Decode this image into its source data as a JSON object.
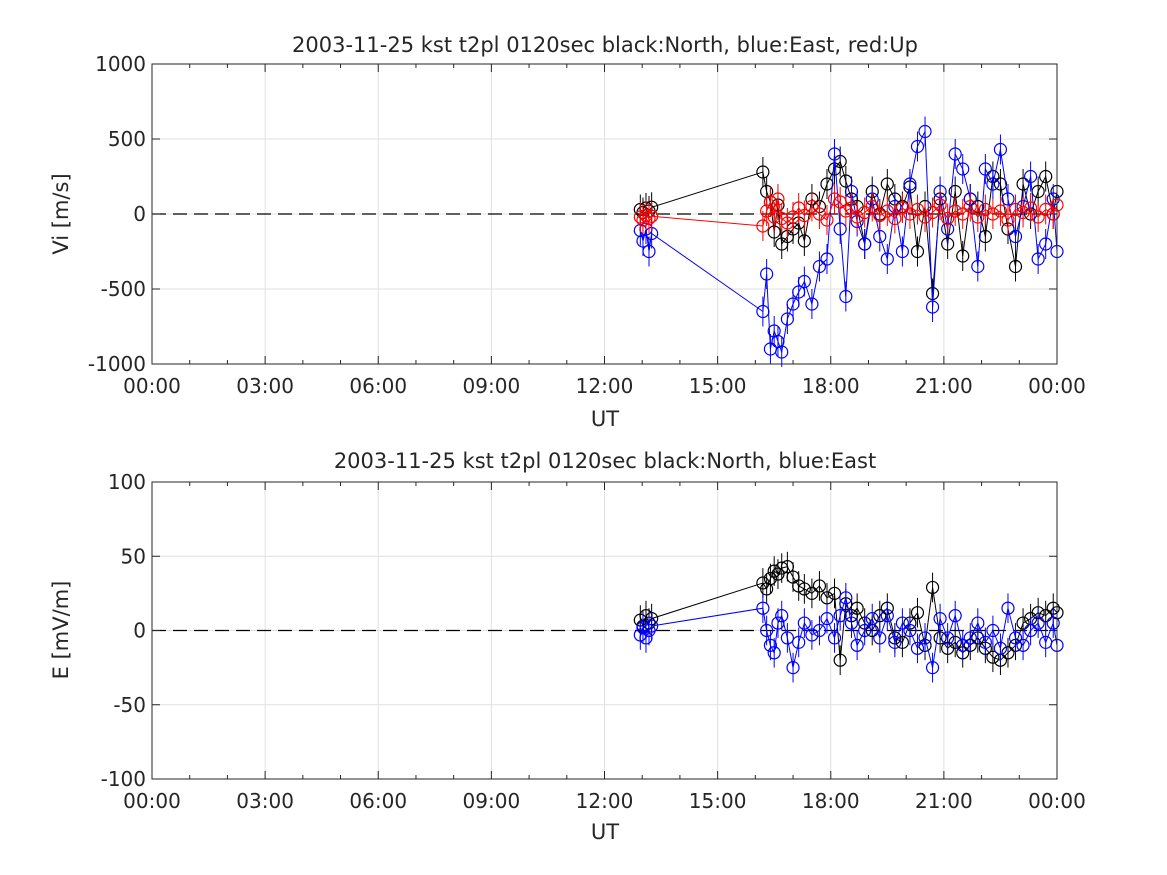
{
  "chart_data": [
    {
      "type": "scatter",
      "title": "2003-11-25 kst t2pl 0120sec black:North, blue:East, red:Up",
      "xlabel": "UT",
      "ylabel": "Vi [m/s]",
      "xlim": [
        0,
        24
      ],
      "ylim": [
        -1000,
        1000
      ],
      "x_ticks": [
        "00:00",
        "03:00",
        "06:00",
        "09:00",
        "12:00",
        "15:00",
        "18:00",
        "21:00",
        "00:00"
      ],
      "y_ticks": [
        "-1000",
        "-500",
        "0",
        "500",
        "1000"
      ],
      "y_tick_values": [
        -1000,
        -500,
        0,
        500,
        1000
      ],
      "grid": true,
      "zero_line": "dashed",
      "x_units": "hours UT",
      "series": [
        {
          "name": "North",
          "color": "#000000",
          "x": [
            12.95,
            13.02,
            13.1,
            13.18,
            13.25,
            16.2,
            16.3,
            16.4,
            16.5,
            16.6,
            16.7,
            16.85,
            17.0,
            17.15,
            17.3,
            17.5,
            17.7,
            17.9,
            18.1,
            18.25,
            18.4,
            18.55,
            18.7,
            18.9,
            19.1,
            19.3,
            19.5,
            19.7,
            19.9,
            20.1,
            20.3,
            20.5,
            20.7,
            20.9,
            21.1,
            21.3,
            21.5,
            21.7,
            21.9,
            22.1,
            22.3,
            22.5,
            22.7,
            22.9,
            23.1,
            23.3,
            23.5,
            23.7,
            23.9,
            24.0
          ],
          "y": [
            30,
            10,
            40,
            20,
            45,
            280,
            150,
            80,
            -120,
            60,
            -200,
            -150,
            -100,
            -60,
            -180,
            100,
            50,
            200,
            300,
            350,
            220,
            100,
            50,
            -200,
            150,
            0,
            200,
            100,
            50,
            180,
            -250,
            50,
            -530,
            100,
            -200,
            150,
            -280,
            100,
            50,
            -150,
            250,
            200,
            -100,
            -350,
            200,
            0,
            150,
            250,
            0,
            150
          ]
        },
        {
          "name": "East",
          "color": "#0000ff",
          "x": [
            12.95,
            13.02,
            13.1,
            13.18,
            13.25,
            16.2,
            16.3,
            16.4,
            16.5,
            16.6,
            16.7,
            16.85,
            17.0,
            17.15,
            17.3,
            17.5,
            17.7,
            17.9,
            18.1,
            18.25,
            18.4,
            18.55,
            18.7,
            18.9,
            19.1,
            19.3,
            19.5,
            19.7,
            19.9,
            20.1,
            20.3,
            20.5,
            20.7,
            20.9,
            21.1,
            21.3,
            21.5,
            21.7,
            21.9,
            22.1,
            22.3,
            22.5,
            22.7,
            22.9,
            23.1,
            23.3,
            23.5,
            23.7,
            23.9,
            24.0
          ],
          "y": [
            -110,
            -180,
            -100,
            -250,
            -130,
            -650,
            -400,
            -900,
            -780,
            -850,
            -920,
            -700,
            -600,
            -520,
            -450,
            -600,
            -350,
            -300,
            400,
            -100,
            -550,
            150,
            -50,
            -200,
            100,
            -150,
            -300,
            50,
            -250,
            200,
            450,
            550,
            -620,
            150,
            -100,
            400,
            300,
            100,
            -350,
            300,
            200,
            430,
            100,
            -150,
            50,
            250,
            -300,
            -200,
            100,
            -250
          ]
        },
        {
          "name": "Up",
          "color": "#ff0000",
          "x": [
            12.95,
            13.02,
            13.1,
            13.18,
            13.25,
            16.2,
            16.3,
            16.4,
            16.5,
            16.6,
            16.7,
            16.85,
            17.0,
            17.15,
            17.3,
            17.5,
            17.7,
            17.9,
            18.1,
            18.25,
            18.4,
            18.55,
            18.7,
            18.9,
            19.1,
            19.3,
            19.5,
            19.7,
            19.9,
            20.1,
            20.3,
            20.5,
            20.7,
            20.9,
            21.1,
            21.3,
            21.5,
            21.7,
            21.9,
            22.1,
            22.3,
            22.5,
            22.7,
            22.9,
            23.1,
            23.3,
            23.5,
            23.7,
            23.9,
            24.0
          ],
          "y": [
            -20,
            -40,
            -10,
            -30,
            -15,
            -80,
            20,
            80,
            -20,
            100,
            -30,
            -60,
            -20,
            40,
            -10,
            50,
            0,
            -40,
            100,
            80,
            20,
            40,
            -20,
            10,
            50,
            -10,
            20,
            -30,
            40,
            0,
            30,
            -20,
            10,
            60,
            -30,
            20,
            0,
            50,
            -20,
            30,
            0,
            20,
            -40,
            30,
            10,
            40,
            -20,
            30,
            0,
            60
          ]
        }
      ]
    },
    {
      "type": "scatter",
      "title": "2003-11-25 kst t2pl 0120sec black:North, blue:East",
      "xlabel": "UT",
      "ylabel": "E [mV/m]",
      "xlim": [
        0,
        24
      ],
      "ylim": [
        -100,
        100
      ],
      "x_ticks": [
        "00:00",
        "03:00",
        "06:00",
        "09:00",
        "12:00",
        "15:00",
        "18:00",
        "21:00",
        "00:00"
      ],
      "y_ticks": [
        "-100",
        "-50",
        "0",
        "50",
        "100"
      ],
      "y_tick_values": [
        -100,
        -50,
        0,
        50,
        100
      ],
      "grid": true,
      "zero_line": "dashed",
      "x_units": "hours UT",
      "series": [
        {
          "name": "North",
          "color": "#000000",
          "x": [
            12.95,
            13.02,
            13.1,
            13.18,
            13.25,
            16.2,
            16.3,
            16.4,
            16.5,
            16.6,
            16.7,
            16.85,
            17.0,
            17.15,
            17.3,
            17.5,
            17.7,
            17.9,
            18.1,
            18.25,
            18.4,
            18.55,
            18.7,
            18.9,
            19.1,
            19.3,
            19.5,
            19.7,
            19.9,
            20.1,
            20.3,
            20.5,
            20.7,
            20.9,
            21.1,
            21.3,
            21.5,
            21.7,
            21.9,
            22.1,
            22.3,
            22.5,
            22.7,
            22.9,
            23.1,
            23.3,
            23.5,
            23.7,
            23.9,
            24.0
          ],
          "y": [
            7,
            3,
            10,
            5,
            8,
            32,
            28,
            35,
            40,
            38,
            42,
            43,
            36,
            30,
            28,
            25,
            30,
            22,
            25,
            -20,
            18,
            10,
            15,
            5,
            0,
            10,
            15,
            -5,
            -8,
            5,
            12,
            -10,
            29,
            -5,
            -12,
            -8,
            -15,
            -10,
            -5,
            -12,
            -18,
            -20,
            -15,
            -10,
            5,
            8,
            12,
            10,
            15,
            12
          ]
        },
        {
          "name": "East",
          "color": "#0000ff",
          "x": [
            12.95,
            13.02,
            13.1,
            13.18,
            13.25,
            16.2,
            16.3,
            16.4,
            16.5,
            16.6,
            16.7,
            16.85,
            17.0,
            17.15,
            17.3,
            17.5,
            17.7,
            17.9,
            18.1,
            18.25,
            18.4,
            18.55,
            18.7,
            18.9,
            19.1,
            19.3,
            19.5,
            19.7,
            19.9,
            20.1,
            20.3,
            20.5,
            20.7,
            20.9,
            21.1,
            21.3,
            21.5,
            21.7,
            21.9,
            22.1,
            22.3,
            22.5,
            22.7,
            22.9,
            23.1,
            23.3,
            23.5,
            23.7,
            23.9,
            24.0
          ],
          "y": [
            -3,
            2,
            -5,
            0,
            3,
            15,
            0,
            -10,
            -15,
            5,
            10,
            -5,
            -25,
            -8,
            5,
            -3,
            0,
            8,
            -5,
            10,
            22,
            5,
            -10,
            0,
            8,
            -5,
            10,
            -8,
            5,
            0,
            -12,
            -5,
            -25,
            8,
            -5,
            10,
            -10,
            -5,
            5,
            -8,
            0,
            -12,
            15,
            -5,
            -10,
            0,
            5,
            -8,
            5,
            -10
          ]
        }
      ]
    }
  ]
}
